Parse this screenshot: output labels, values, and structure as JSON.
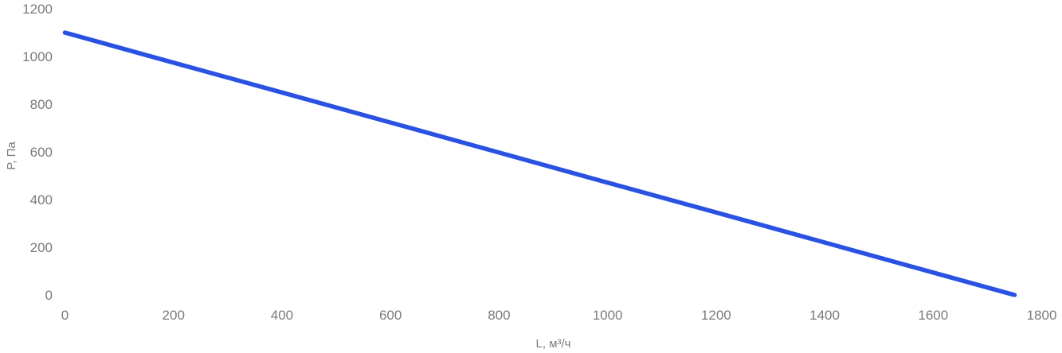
{
  "colors": {
    "background": "#ffffff",
    "text": "#7b7b7b",
    "line": "#2a52e2"
  },
  "chart_data": {
    "type": "line",
    "title": "",
    "xlabel": "L, м³/ч",
    "ylabel": "P, Па",
    "xlim": [
      0,
      1800
    ],
    "ylim": [
      0,
      1200
    ],
    "xticks": [
      0,
      200,
      400,
      600,
      800,
      1000,
      1200,
      1400,
      1600,
      1800
    ],
    "yticks": [
      0,
      200,
      400,
      600,
      800,
      1000,
      1200
    ],
    "grid": false,
    "legend": false,
    "axis_lines": false,
    "series": [
      {
        "name": "pressure-flow-curve",
        "color": "#2a52e2",
        "x": [
          0,
          200,
          400,
          600,
          800,
          1000,
          1200,
          1400,
          1600,
          1750
        ],
        "y": [
          1100,
          974,
          849,
          723,
          597,
          471,
          346,
          220,
          94,
          0
        ]
      }
    ]
  }
}
